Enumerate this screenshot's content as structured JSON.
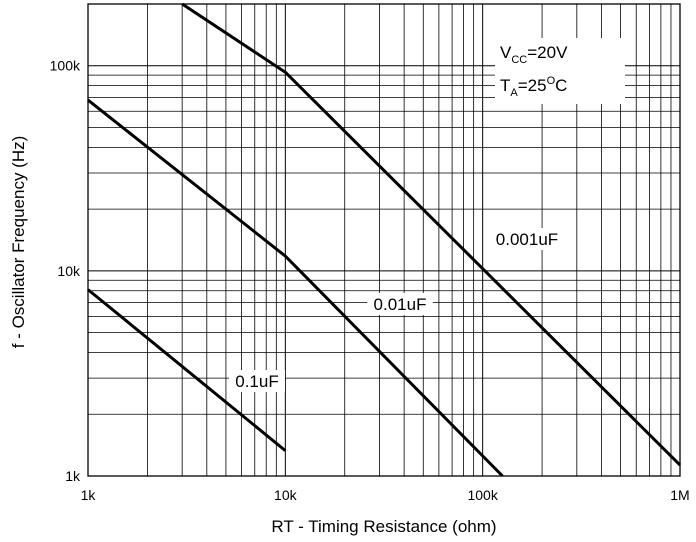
{
  "chart_data": {
    "type": "line",
    "xscale": "log",
    "yscale": "log",
    "xlim": [
      1000,
      1000000
    ],
    "ylim": [
      1000,
      200000
    ],
    "xlabel": "RT - Timing Resistance (ohm)",
    "ylabel": "f - Oscillator Frequency (Hz)",
    "x_ticks": [
      {
        "value": 1000,
        "label": "1k"
      },
      {
        "value": 10000,
        "label": "10k"
      },
      {
        "value": 100000,
        "label": "100k"
      },
      {
        "value": 1000000,
        "label": "1M"
      }
    ],
    "y_ticks": [
      {
        "value": 1000,
        "label": "1k"
      },
      {
        "value": 10000,
        "label": "10k"
      },
      {
        "value": 100000,
        "label": "100k"
      }
    ],
    "grid": true,
    "annotation": {
      "line1_main": "V",
      "line1_sub": "CC",
      "line1_rest": "=20V",
      "line2_main": "T",
      "line2_sub": "A",
      "line2_rest": "=25",
      "line2_sup": "O",
      "line2_end": "C"
    },
    "series": [
      {
        "name": "0.001uF",
        "x": [
          3000,
          10000,
          1000000
        ],
        "y": [
          200000,
          93000,
          1130
        ]
      },
      {
        "name": "0.01uF",
        "x": [
          1000,
          10000,
          126000
        ],
        "y": [
          68000,
          11800,
          1000
        ]
      },
      {
        "name": "0.1uF",
        "x": [
          1000,
          10000
        ],
        "y": [
          8100,
          1330
        ]
      }
    ]
  }
}
